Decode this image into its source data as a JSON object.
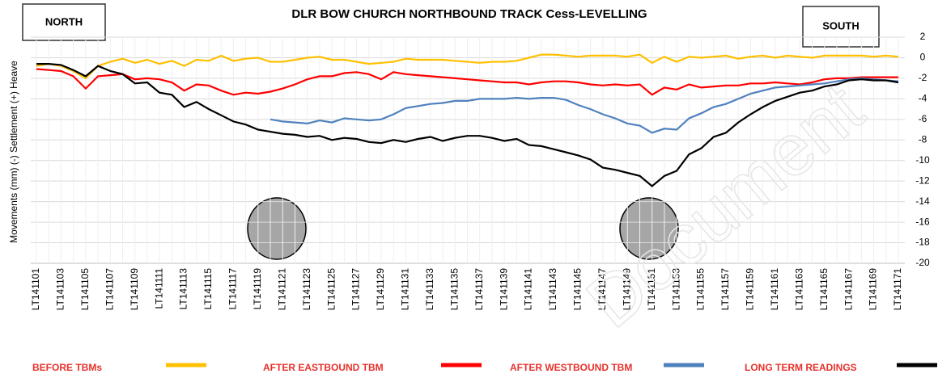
{
  "chart_data": {
    "type": "line",
    "title": "DLR BOW CHURCH NORTHBOUND TRACK  Cess-LEVELLING",
    "y_label": "Movements (mm) (-) Settlement (+) Heave",
    "annotations": [
      "NORTH",
      "SOUTH"
    ],
    "watermark": "Document",
    "categories": [
      "LT141101",
      null,
      "LT141103",
      null,
      "LT141105",
      null,
      "LT141107",
      null,
      "LT141109",
      null,
      "LT141111",
      null,
      "LT141113",
      null,
      "LT141115",
      null,
      "LT141117",
      null,
      "LT141119",
      null,
      "LT141121",
      null,
      "LT141123",
      null,
      "LT141125",
      null,
      "LT141127",
      null,
      "LT141129",
      null,
      "LT141131",
      null,
      "LT141133",
      null,
      "LT141135",
      null,
      "LT141137",
      null,
      "LT141139",
      null,
      "LT141141",
      null,
      "LT141143",
      null,
      "LT141145",
      null,
      "LT141147",
      null,
      "LT141149",
      null,
      "LT141151",
      null,
      "LT141153",
      null,
      "LT141155",
      null,
      "LT141157",
      null,
      "LT141159",
      null,
      "LT141161",
      null,
      "LT141163",
      null,
      "LT141165",
      null,
      "LT141167",
      null,
      "LT141169",
      null,
      "LT141171"
    ],
    "series": [
      {
        "name": "BEFORE TBMs",
        "color": "#ffc000",
        "values": [
          -0.8,
          -0.6,
          -0.8,
          -1.3,
          -2.0,
          -0.8,
          -0.4,
          -0.1,
          -0.5,
          -0.2,
          -0.6,
          -0.3,
          -0.8,
          -0.2,
          -0.3,
          0.2,
          -0.3,
          -0.1,
          0,
          -0.4,
          -0.4,
          -0.2,
          0,
          0.1,
          -0.2,
          -0.2,
          -0.4,
          -0.6,
          -0.5,
          -0.4,
          -0.1,
          -0.2,
          -0.2,
          -0.2,
          -0.3,
          -0.4,
          -0.5,
          -0.4,
          -0.4,
          -0.3,
          0,
          0.3,
          0.3,
          0.2,
          0.1,
          0.2,
          0.2,
          0.2,
          0.1,
          0.3,
          -0.5,
          0.1,
          -0.4,
          0.1,
          0,
          0.1,
          0.2,
          -0.1,
          0.1,
          0.2,
          0,
          0.2,
          0.1,
          0,
          0.2,
          0.2,
          0.2,
          0.2,
          0.1,
          0.2,
          0.1
        ]
      },
      {
        "name": "AFTER EASTBOUND TBM",
        "color": "#ff0000",
        "values": [
          -1.1,
          -1.2,
          -1.3,
          -1.8,
          -3.0,
          -1.8,
          -1.7,
          -1.6,
          -2.1,
          -2.0,
          -2.1,
          -2.4,
          -3.2,
          -2.6,
          -2.7,
          -3.2,
          -3.6,
          -3.4,
          -3.5,
          -3.3,
          -3.0,
          -2.6,
          -2.1,
          -1.8,
          -1.8,
          -1.5,
          -1.4,
          -1.6,
          -2.1,
          -1.4,
          -1.6,
          -1.7,
          -1.8,
          -1.9,
          -2.0,
          -2.1,
          -2.2,
          -2.3,
          -2.4,
          -2.4,
          -2.6,
          -2.4,
          -2.3,
          -2.3,
          -2.4,
          -2.6,
          -2.7,
          -2.6,
          -2.7,
          -2.6,
          -3.6,
          -2.9,
          -3.1,
          -2.6,
          -2.9,
          -2.8,
          -2.7,
          -2.7,
          -2.5,
          -2.5,
          -2.4,
          -2.5,
          -2.6,
          -2.4,
          -2.1,
          -2.0,
          -2.0,
          -1.9,
          -1.9,
          -1.9,
          -1.9
        ]
      },
      {
        "name": "AFTER WESTBOUND TBM",
        "color": "#4f81bd",
        "values": [
          null,
          null,
          null,
          null,
          null,
          null,
          null,
          null,
          null,
          null,
          null,
          null,
          null,
          null,
          null,
          null,
          null,
          null,
          null,
          -6.0,
          -6.2,
          -6.3,
          -6.4,
          -6.1,
          -6.3,
          -5.9,
          -6.0,
          -6.1,
          -6.0,
          -5.5,
          -4.9,
          -4.7,
          -4.5,
          -4.4,
          -4.2,
          -4.2,
          -4.0,
          -4.0,
          -4.0,
          -3.9,
          -4.0,
          -3.9,
          -3.9,
          -4.1,
          -4.6,
          -5.0,
          -5.5,
          -5.9,
          -6.4,
          -6.6,
          -7.3,
          -6.9,
          -7.0,
          -5.9,
          -5.4,
          -4.8,
          -4.5,
          -4.0,
          -3.5,
          -3.2,
          -2.9,
          -2.8,
          -2.7,
          -2.6,
          -2.5,
          -2.3,
          -2.1,
          -2.0,
          -2.1,
          -2.2,
          -2.3
        ]
      },
      {
        "name": "LONG TERM READINGS",
        "color": "#000000",
        "values": [
          -0.6,
          -0.6,
          -0.7,
          -1.2,
          -1.8,
          -0.8,
          -1.3,
          -1.6,
          -2.5,
          -2.4,
          -3.4,
          -3.6,
          -4.8,
          -4.3,
          -5.0,
          -5.6,
          -6.2,
          -6.5,
          -7.0,
          -7.2,
          -7.4,
          -7.5,
          -7.7,
          -7.6,
          -8.0,
          -7.8,
          -7.9,
          -8.2,
          -8.3,
          -8.0,
          -8.2,
          -7.9,
          -7.7,
          -8.1,
          -7.8,
          -7.6,
          -7.6,
          -7.8,
          -8.1,
          -7.9,
          -8.5,
          -8.6,
          -8.9,
          -9.2,
          -9.5,
          -9.9,
          -10.7,
          -10.9,
          -11.2,
          -11.5,
          -12.5,
          -11.5,
          -11.0,
          -9.4,
          -8.8,
          -7.7,
          -7.3,
          -6.3,
          -5.5,
          -4.8,
          -4.2,
          -3.8,
          -3.4,
          -3.2,
          -2.8,
          -2.6,
          -2.2,
          -2.1,
          -2.2,
          -2.2,
          -2.4
        ]
      }
    ],
    "ylim": [
      -20,
      2
    ],
    "yticks": [
      2,
      0,
      -2,
      -4,
      -6,
      -8,
      -10,
      -12,
      -14,
      -16,
      -18,
      -20
    ],
    "grid": true
  }
}
